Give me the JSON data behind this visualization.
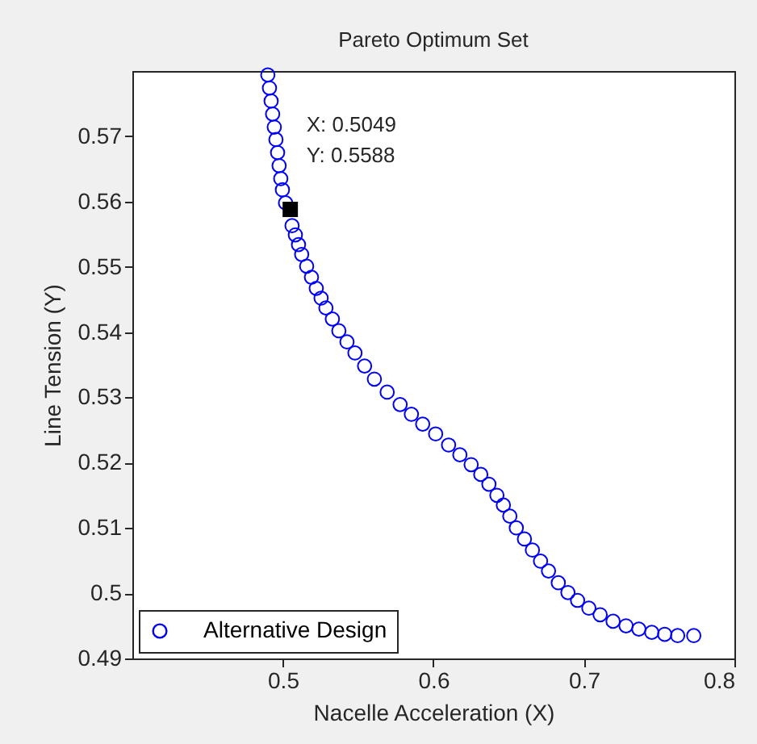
{
  "chart_data": {
    "type": "scatter",
    "title": "Pareto Optimum Set",
    "xlabel": "Nacelle Acceleration (X)",
    "ylabel": "Line Tension (Y)",
    "xlim": [
      0.4,
      0.8
    ],
    "xticks": [
      0.5,
      0.6,
      0.7,
      0.8
    ],
    "ylim": [
      0.49,
      0.58
    ],
    "yticks": [
      0.49,
      0.5,
      0.51,
      0.52,
      0.53,
      0.54,
      0.55,
      0.56,
      0.57
    ],
    "grid": false,
    "legend": "bottom left",
    "marker": "circle",
    "annotations": [
      {
        "text": "X: 0.5049\nY: 0.5588",
        "x": 0.5049,
        "y": 0.5588
      }
    ],
    "series": [
      {
        "name": "Alternative Design",
        "color": "#0000ff",
        "x": [
          0.49,
          0.4911,
          0.4922,
          0.4932,
          0.4943,
          0.4954,
          0.4965,
          0.4975,
          0.4986,
          0.4997,
          0.5018,
          0.5061,
          0.5083,
          0.5104,
          0.5125,
          0.5158,
          0.519,
          0.5222,
          0.5254,
          0.5286,
          0.5329,
          0.5372,
          0.5426,
          0.5479,
          0.5543,
          0.5608,
          0.5693,
          0.5779,
          0.5854,
          0.5929,
          0.6015,
          0.6101,
          0.6176,
          0.6251,
          0.6315,
          0.6369,
          0.6422,
          0.6465,
          0.6508,
          0.6551,
          0.6605,
          0.6658,
          0.6712,
          0.6765,
          0.683,
          0.6894,
          0.6958,
          0.7033,
          0.7108,
          0.7194,
          0.728,
          0.7365,
          0.7451,
          0.7537,
          0.7623,
          0.773
        ],
        "values": [
          0.5794,
          0.5774,
          0.5754,
          0.5734,
          0.5714,
          0.5695,
          0.5675,
          0.5655,
          0.5635,
          0.5618,
          0.5598,
          0.5563,
          0.5549,
          0.5534,
          0.5519,
          0.5501,
          0.5484,
          0.5467,
          0.5452,
          0.5437,
          0.542,
          0.5402,
          0.5385,
          0.5368,
          0.5348,
          0.5328,
          0.5308,
          0.5289,
          0.5274,
          0.5259,
          0.5244,
          0.5227,
          0.5212,
          0.5197,
          0.5182,
          0.5167,
          0.515,
          0.5135,
          0.5118,
          0.51,
          0.5083,
          0.5066,
          0.5049,
          0.5034,
          0.5016,
          0.5001,
          0.4989,
          0.4977,
          0.4967,
          0.4957,
          0.495,
          0.4945,
          0.494,
          0.4937,
          0.4935,
          0.4935
        ]
      }
    ]
  }
}
